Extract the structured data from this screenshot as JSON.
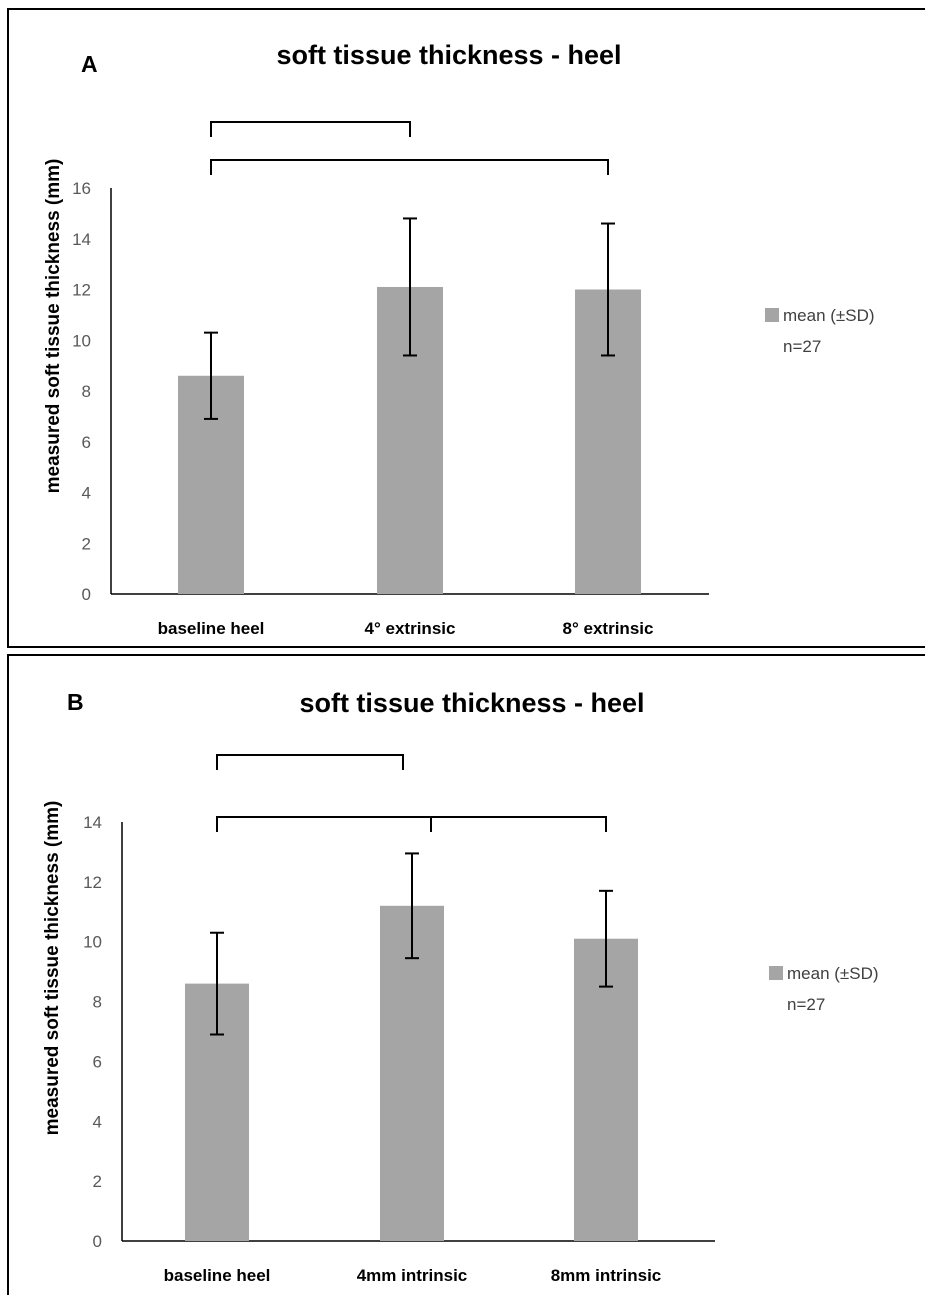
{
  "chart_data": [
    {
      "panel_letter": "A",
      "type": "bar",
      "title": "soft tissue thickness - heel",
      "ylabel": "measured soft tissue thickness (mm)",
      "xlabel": "",
      "categories": [
        "baseline heel",
        "4° extrinsic",
        "8° extrinsic"
      ],
      "series": [
        {
          "name": "mean (±SD)",
          "values": [
            8.6,
            12.1,
            12.0
          ],
          "error": [
            1.7,
            2.7,
            2.6
          ],
          "color": "#a5a5a5"
        }
      ],
      "legend_note": "n=27",
      "legend_position": "right",
      "ylim": [
        0,
        16
      ],
      "yticks": [
        0,
        2,
        4,
        6,
        8,
        10,
        12,
        14,
        16
      ],
      "grid": false,
      "significance_brackets": [
        {
          "from": 0,
          "to": 2
        },
        {
          "from": 0,
          "to": 1
        }
      ]
    },
    {
      "panel_letter": "B",
      "type": "bar",
      "title": "soft tissue thickness - heel",
      "ylabel": "measured soft tissue thickness (mm)",
      "xlabel": "",
      "categories": [
        "baseline heel",
        "4mm intrinsic",
        "8mm intrinsic"
      ],
      "series": [
        {
          "name": "mean (±SD)",
          "values": [
            8.6,
            11.2,
            10.1
          ],
          "error": [
            1.7,
            1.75,
            1.6
          ],
          "color": "#a5a5a5"
        }
      ],
      "legend_note": "n=27",
      "legend_position": "right",
      "ylim": [
        0,
        14
      ],
      "yticks": [
        0,
        2,
        4,
        6,
        8,
        10,
        12,
        14
      ],
      "grid": false,
      "significance_brackets": [
        {
          "from": 0,
          "to": 2
        },
        {
          "from": 0,
          "to": 1
        },
        {
          "from": 1,
          "to": 2
        }
      ]
    }
  ]
}
